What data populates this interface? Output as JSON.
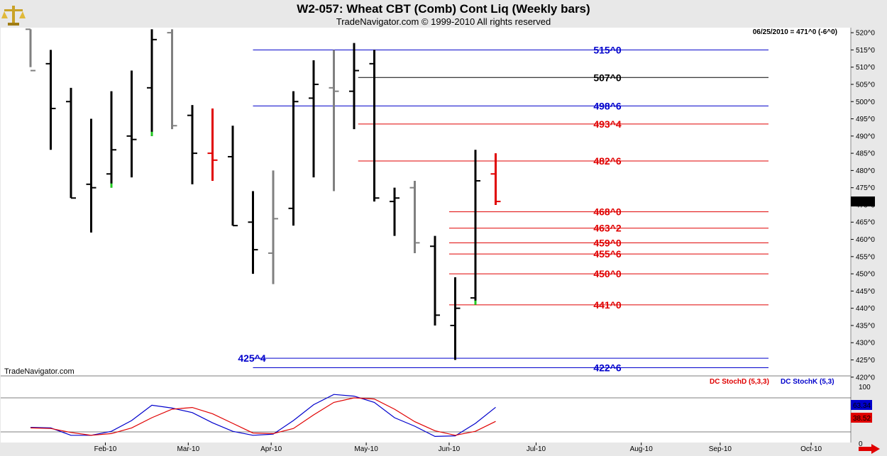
{
  "header": {
    "title": "W2-057:  Wheat CBT (Comb) Cont Liq  (Weekly bars)",
    "subtitle": "TradeNavigator.com © 1999-2010 All rights reserved"
  },
  "watermark": "TradeNavigator.com",
  "icons": {
    "logo": "scales-icon",
    "scroll": "red-arrow-right-icon"
  },
  "chart_data": [
    {
      "type": "ohlc",
      "readout": "06/25/2010 = 471^0 (-6^0)",
      "last_price_label": "471^0",
      "y_axis": {
        "min": 418,
        "max": 522,
        "ticks": [
          420,
          425,
          430,
          435,
          440,
          445,
          450,
          455,
          460,
          465,
          470,
          475,
          480,
          485,
          490,
          495,
          500,
          505,
          510,
          515,
          520
        ],
        "tick_suffix": "^0"
      },
      "x_axis": {
        "labels": [
          {
            "text": "Feb-10",
            "week": 3.7
          },
          {
            "text": "Mar-10",
            "week": 7.8
          },
          {
            "text": "Apr-10",
            "week": 11.9
          },
          {
            "text": "May-10",
            "week": 16.6
          },
          {
            "text": "Jun-10",
            "week": 20.7
          },
          {
            "text": "Jul-10",
            "week": 25.0
          },
          {
            "text": "Aug-10",
            "week": 30.2
          },
          {
            "text": "Sep-10",
            "week": 34.1
          },
          {
            "text": "Oct-10",
            "week": 38.6
          }
        ],
        "weeks_visible": 41.5
      },
      "colors": {
        "up": "#000000",
        "down": "#000000",
        "gray": "#808080",
        "highlight_red": "#e00000",
        "highlight_green": "#22cc22"
      },
      "bars": [
        {
          "w": 0,
          "o": 521,
          "h": 521,
          "l": 510,
          "c": 509,
          "color": "gray"
        },
        {
          "w": 1,
          "o": 511,
          "h": 515,
          "l": 486,
          "c": 498,
          "color": "black"
        },
        {
          "w": 2,
          "o": 500,
          "h": 504,
          "l": 472,
          "c": 472,
          "color": "black"
        },
        {
          "w": 3,
          "o": 476,
          "h": 495,
          "l": 462,
          "c": 475,
          "color": "black"
        },
        {
          "w": 4,
          "o": 479,
          "h": 503,
          "l": 475,
          "c": 486,
          "color": "black",
          "tail": "green"
        },
        {
          "w": 5,
          "o": 490,
          "h": 509,
          "l": 478,
          "c": 489,
          "color": "black"
        },
        {
          "w": 6,
          "o": 504,
          "h": 521,
          "l": 490,
          "c": 518,
          "color": "black",
          "tail": "green"
        },
        {
          "w": 7,
          "o": 520,
          "h": 521,
          "l": 492,
          "c": 493,
          "color": "gray"
        },
        {
          "w": 8,
          "o": 496,
          "h": 499,
          "l": 476,
          "c": 485,
          "color": "black"
        },
        {
          "w": 9,
          "o": 485,
          "h": 498,
          "l": 477,
          "c": 483,
          "color": "red"
        },
        {
          "w": 10,
          "o": 484,
          "h": 493,
          "l": 464,
          "c": 464,
          "color": "black"
        },
        {
          "w": 11,
          "o": 465,
          "h": 474,
          "l": 450,
          "c": 457,
          "color": "black"
        },
        {
          "w": 12,
          "o": 456,
          "h": 480,
          "l": 447,
          "c": 466,
          "color": "gray"
        },
        {
          "w": 13,
          "o": 469,
          "h": 503,
          "l": 464,
          "c": 500,
          "color": "black"
        },
        {
          "w": 14,
          "o": 501,
          "h": 512,
          "l": 478,
          "c": 505,
          "color": "black"
        },
        {
          "w": 15,
          "o": 504,
          "h": 515,
          "l": 474,
          "c": 503,
          "color": "gray"
        },
        {
          "w": 16,
          "o": 503,
          "h": 517,
          "l": 492,
          "c": 509,
          "color": "black"
        },
        {
          "w": 17,
          "o": 511,
          "h": 515,
          "l": 471,
          "c": 472,
          "color": "black"
        },
        {
          "w": 18,
          "o": 471,
          "h": 475,
          "l": 461,
          "c": 472,
          "color": "black"
        },
        {
          "w": 19,
          "o": 475,
          "h": 477,
          "l": 456,
          "c": 459,
          "color": "gray"
        },
        {
          "w": 20,
          "o": 458,
          "h": 461,
          "l": 435,
          "c": 438,
          "color": "black"
        },
        {
          "w": 21,
          "o": 435,
          "h": 449,
          "l": 425,
          "c": 440,
          "color": "black"
        },
        {
          "w": 22,
          "o": 443,
          "h": 486,
          "l": 441,
          "c": 477,
          "color": "black",
          "tail": "green"
        },
        {
          "w": 23,
          "o": 479,
          "h": 485,
          "l": 470,
          "c": 471,
          "color": "red"
        }
      ],
      "levels": [
        {
          "value": 515.0,
          "label": "515^0",
          "color": "#0000cc",
          "from_week": 11.0,
          "label_side": "right"
        },
        {
          "value": 507.0,
          "label": "507^0",
          "color": "#000000",
          "from_week": 16.2,
          "label_side": "right"
        },
        {
          "value": 498.75,
          "label": "498^6",
          "color": "#0000cc",
          "from_week": 11.0,
          "label_side": "right"
        },
        {
          "value": 493.5,
          "label": "493^4",
          "color": "#e00000",
          "from_week": 16.2,
          "label_side": "right"
        },
        {
          "value": 482.75,
          "label": "482^6",
          "color": "#e00000",
          "from_week": 16.2,
          "label_side": "right"
        },
        {
          "value": 468.0,
          "label": "468^0",
          "color": "#e00000",
          "from_week": 20.7,
          "label_side": "right"
        },
        {
          "value": 463.25,
          "label": "463^2",
          "color": "#e00000",
          "from_week": 20.7,
          "label_side": "right"
        },
        {
          "value": 459.0,
          "label": "459^0",
          "color": "#e00000",
          "from_week": 20.7,
          "label_side": "right"
        },
        {
          "value": 455.75,
          "label": "455^6",
          "color": "#e00000",
          "from_week": 20.7,
          "label_side": "right"
        },
        {
          "value": 450.0,
          "label": "450^0",
          "color": "#e00000",
          "from_week": 20.7,
          "label_side": "right"
        },
        {
          "value": 441.0,
          "label": "441^0",
          "color": "#e00000",
          "from_week": 20.7,
          "label_side": "right"
        },
        {
          "value": 425.5,
          "label": "425^4",
          "color": "#0000cc",
          "from_week": 11.0,
          "label_side": "left"
        },
        {
          "value": 422.75,
          "label": "422^6",
          "color": "#0000cc",
          "from_week": 11.0,
          "label_side": "right"
        }
      ]
    },
    {
      "type": "line",
      "legend": [
        {
          "name": "DC StochD (5,3,3)",
          "color": "#e00000"
        },
        {
          "name": "DC StochK (5,3)",
          "color": "#0000cc"
        }
      ],
      "y_axis": {
        "labels": [
          {
            "value": 100,
            "text": "100"
          },
          {
            "value": 0,
            "text": "0"
          }
        ],
        "reference_lines": [
          80,
          20
        ]
      },
      "last_values": [
        {
          "text": "63.34",
          "color": "#0000cc"
        },
        {
          "text": "38.52",
          "color": "#e00000"
        }
      ],
      "series": [
        {
          "name": "DC StochK (5,3)",
          "color": "#0000cc",
          "values": [
            {
              "w": 0,
              "v": 28
            },
            {
              "w": 1,
              "v": 27
            },
            {
              "w": 2,
              "v": 14
            },
            {
              "w": 3,
              "v": 14
            },
            {
              "w": 4,
              "v": 21
            },
            {
              "w": 5,
              "v": 40
            },
            {
              "w": 6,
              "v": 67
            },
            {
              "w": 7,
              "v": 62
            },
            {
              "w": 8,
              "v": 54
            },
            {
              "w": 9,
              "v": 36
            },
            {
              "w": 10,
              "v": 21
            },
            {
              "w": 11,
              "v": 14
            },
            {
              "w": 12,
              "v": 16
            },
            {
              "w": 13,
              "v": 40
            },
            {
              "w": 14,
              "v": 68
            },
            {
              "w": 15,
              "v": 86
            },
            {
              "w": 16,
              "v": 83
            },
            {
              "w": 17,
              "v": 72
            },
            {
              "w": 18,
              "v": 45
            },
            {
              "w": 19,
              "v": 30
            },
            {
              "w": 20,
              "v": 12
            },
            {
              "w": 21,
              "v": 13
            },
            {
              "w": 22,
              "v": 35
            },
            {
              "w": 23,
              "v": 63.34
            }
          ]
        },
        {
          "name": "DC StochD (5,3,3)",
          "color": "#e00000",
          "values": [
            {
              "w": 0,
              "v": 27
            },
            {
              "w": 1,
              "v": 26
            },
            {
              "w": 2,
              "v": 19
            },
            {
              "w": 3,
              "v": 14
            },
            {
              "w": 4,
              "v": 17
            },
            {
              "w": 5,
              "v": 27
            },
            {
              "w": 6,
              "v": 45
            },
            {
              "w": 7,
              "v": 60
            },
            {
              "w": 8,
              "v": 63
            },
            {
              "w": 9,
              "v": 52
            },
            {
              "w": 10,
              "v": 35
            },
            {
              "w": 11,
              "v": 18
            },
            {
              "w": 12,
              "v": 17
            },
            {
              "w": 13,
              "v": 26
            },
            {
              "w": 14,
              "v": 50
            },
            {
              "w": 15,
              "v": 72
            },
            {
              "w": 16,
              "v": 80
            },
            {
              "w": 17,
              "v": 78
            },
            {
              "w": 18,
              "v": 60
            },
            {
              "w": 19,
              "v": 38
            },
            {
              "w": 20,
              "v": 22
            },
            {
              "w": 21,
              "v": 14
            },
            {
              "w": 22,
              "v": 21
            },
            {
              "w": 23,
              "v": 38.52
            }
          ]
        }
      ]
    }
  ]
}
